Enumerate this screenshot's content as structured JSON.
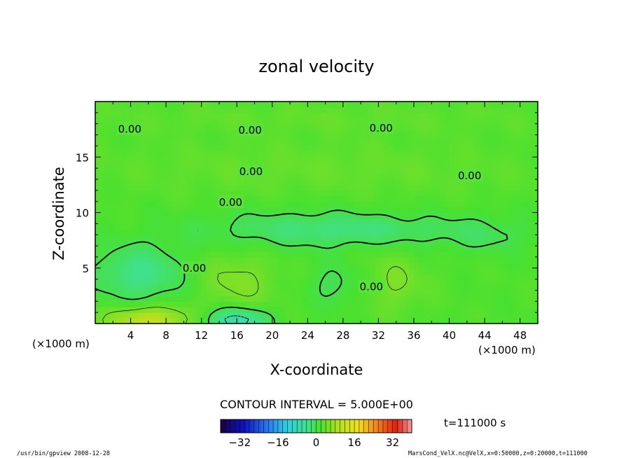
{
  "chart_data": {
    "type": "heatmap",
    "title": "zonal velocity",
    "xlabel": "X-coordinate",
    "ylabel": "Z-coordinate",
    "x_units": "(×1000 m)",
    "y_units": "(×1000 m)",
    "xlim": [
      0,
      50
    ],
    "ylim": [
      0,
      20
    ],
    "x_ticks": [
      4,
      8,
      12,
      16,
      20,
      24,
      28,
      32,
      36,
      40,
      44,
      48
    ],
    "y_ticks": [
      5,
      10,
      15
    ],
    "contour_interval_label": "CONTOUR INTERVAL = 5.000E+00",
    "contour_labels": [
      {
        "x": 3.9,
        "z": 17.5,
        "text": "0.00"
      },
      {
        "x": 17.5,
        "z": 17.4,
        "text": "0.00"
      },
      {
        "x": 32.3,
        "z": 17.6,
        "text": "0.00"
      },
      {
        "x": 17.6,
        "z": 13.7,
        "text": "0.00"
      },
      {
        "x": 42.3,
        "z": 13.3,
        "text": "0.00"
      },
      {
        "x": 15.3,
        "z": 10.9,
        "text": "0.00"
      },
      {
        "x": 11.2,
        "z": 5.0,
        "text": "0.00"
      },
      {
        "x": 31.2,
        "z": 3.3,
        "text": "0.00"
      }
    ],
    "colorbar": {
      "range": [
        -40,
        40
      ],
      "tick_values": [
        -32,
        -16,
        0,
        16,
        32
      ],
      "tick_labels": [
        "−32",
        "−16",
        "0",
        "16",
        "32"
      ]
    },
    "time_label": "t=111000 s",
    "field_extrema": {
      "min_approx": -10,
      "max_approx": 10
    }
  },
  "footer": {
    "left": "/usr/bin/gpview  2008-12-28",
    "right": "MarsCond_VelX.nc@VelX,x=0:50000,z=0:20000,t=111000"
  }
}
